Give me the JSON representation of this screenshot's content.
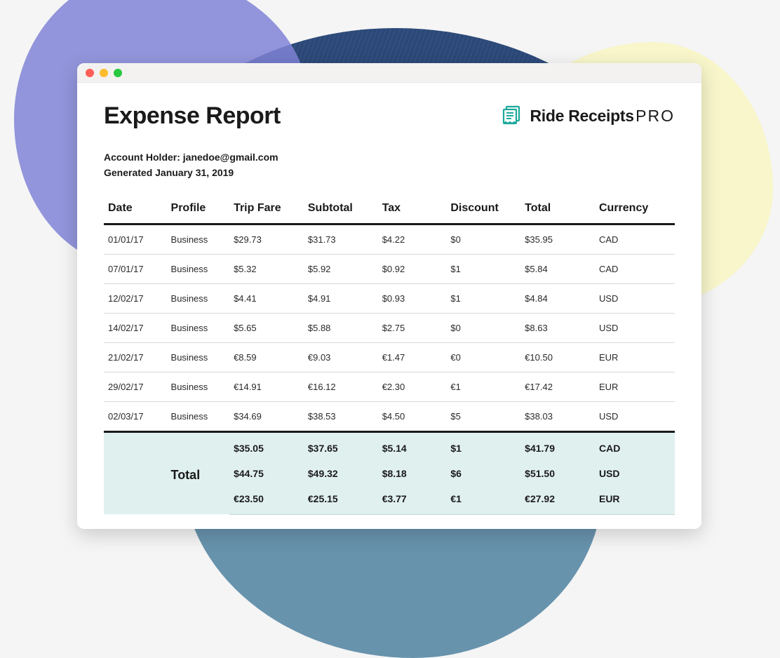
{
  "page": {
    "title": "Expense Report",
    "brand_name": "Ride Receipts",
    "brand_suffix": "PRO",
    "brand_icon_color": "#1aa99c"
  },
  "meta": {
    "account_label": "Account Holder: ",
    "account_value": "janedoe@gmail.com",
    "generated_label": "Generated ",
    "generated_value": "January 31, 2019"
  },
  "table": {
    "columns": [
      "Date",
      "Profile",
      "Trip Fare",
      "Subtotal",
      "Tax",
      "Discount",
      "Total",
      "Currency"
    ],
    "rows": [
      [
        "01/01/17",
        "Business",
        "$29.73",
        "$31.73",
        "$4.22",
        "$0",
        "$35.95",
        "CAD"
      ],
      [
        "07/01/17",
        "Business",
        "$5.32",
        "$5.92",
        "$0.92",
        "$1",
        "$5.84",
        "CAD"
      ],
      [
        "12/02/17",
        "Business",
        "$4.41",
        "$4.91",
        "$0.93",
        "$1",
        "$4.84",
        "USD"
      ],
      [
        "14/02/17",
        "Business",
        "$5.65",
        "$5.88",
        "$2.75",
        "$0",
        "$8.63",
        "USD"
      ],
      [
        "21/02/17",
        "Business",
        "€8.59",
        "€9.03",
        "€1.47",
        "€0",
        "€10.50",
        "EUR"
      ],
      [
        "29/02/17",
        "Business",
        "€14.91",
        "€16.12",
        "€2.30",
        "€1",
        "€17.42",
        "EUR"
      ],
      [
        "02/03/17",
        "Business",
        "$34.69",
        "$38.53",
        "$4.50",
        "$5",
        "$38.03",
        "USD"
      ]
    ],
    "totals_label": "Total",
    "totals": [
      [
        "$35.05",
        "$37.65",
        "$5.14",
        "$1",
        "$41.79",
        "CAD"
      ],
      [
        "$44.75",
        "$49.32",
        "$8.18",
        "$6",
        "$51.50",
        "USD"
      ],
      [
        "€23.50",
        "€25.15",
        "€3.77",
        "€1",
        "€27.92",
        "EUR"
      ]
    ],
    "header_border_color": "#1a1a1a",
    "row_border_color": "#d8d8d8",
    "totals_bg_color": "#e0f0ef",
    "header_fontsize": 16,
    "cell_fontsize": 13,
    "totals_fontsize": 14
  },
  "window": {
    "background_color": "#ffffff",
    "titlebar_color": "#f3f2f1",
    "traffic_colors": {
      "red": "#ff5f57",
      "yellow": "#febc2e",
      "green": "#28c840"
    }
  },
  "background_blobs": {
    "purple": "#8084d6",
    "yellow": "#f8f6c5",
    "darkblue": "#1a3a6e",
    "teal": "#2c6a8e"
  }
}
